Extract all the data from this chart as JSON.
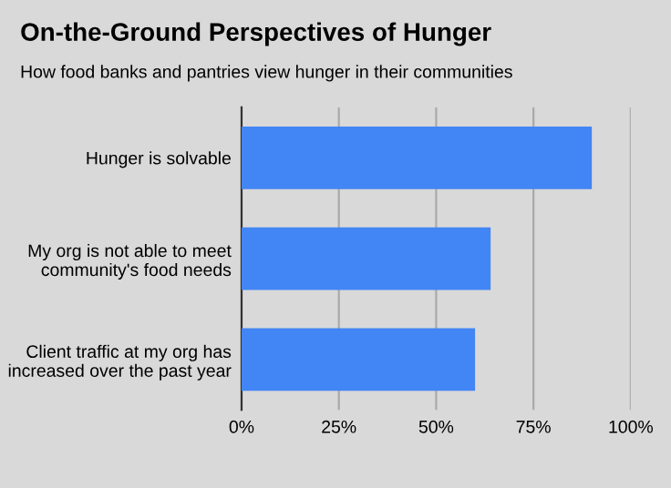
{
  "chart_data": {
    "type": "bar",
    "orientation": "horizontal",
    "title": "On-the-Ground Perspectives of Hunger",
    "subtitle": "How food banks and pantries view hunger in their communities",
    "categories": [
      "Hunger is solvable",
      "My org is not able to meet community's food needs",
      "Client traffic at my org has increased over the past year"
    ],
    "values": [
      90,
      64,
      60
    ],
    "color": "#4285f4",
    "xlim": [
      0,
      100
    ],
    "xticks": [
      {
        "value": 0,
        "label": "0%"
      },
      {
        "value": 25,
        "label": "25%"
      },
      {
        "value": 50,
        "label": "50%"
      },
      {
        "value": 75,
        "label": "75%"
      },
      {
        "value": 100,
        "label": "100%"
      }
    ],
    "grid": "x"
  }
}
